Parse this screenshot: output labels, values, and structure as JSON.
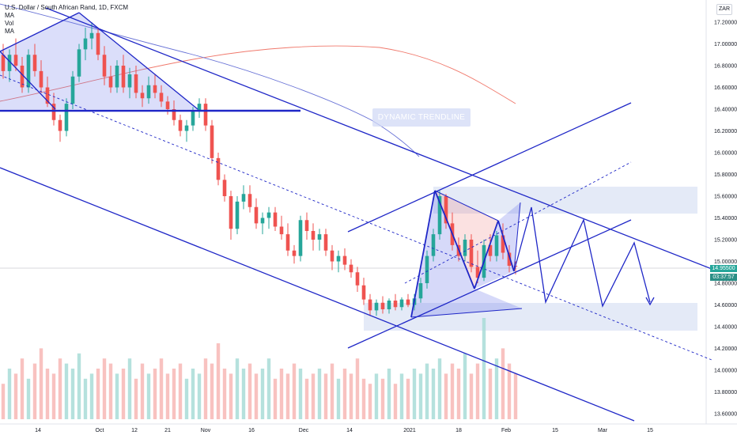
{
  "legend": {
    "symbol": "U.S. Dollar / South African Rand, 1D, FXCM",
    "ma1": "MA",
    "vol": "Vol",
    "ma2": "MA"
  },
  "currency_badge": "ZAR",
  "current_price": "14.95500",
  "countdown": "03:37:57",
  "annotation": "DYNAMIC TRENDLINE",
  "colors": {
    "up": "#26a69a",
    "down": "#ef5350",
    "drawing": "#1f27c7",
    "ma_blue": "#6872d6",
    "ma_red": "#f0796c",
    "zone": "#dbe3f4"
  },
  "chart_data": {
    "type": "candlestick",
    "title": "U.S. Dollar / South African Rand, 1D, FXCM",
    "y_axis_side": "right",
    "ylim": [
      13.55,
      17.3
    ],
    "y_ticks": [
      "17.20000",
      "17.00000",
      "16.80000",
      "16.60000",
      "16.40000",
      "16.20000",
      "16.00000",
      "15.80000",
      "15.60000",
      "15.40000",
      "15.20000",
      "15.00000",
      "14.80000",
      "14.60000",
      "14.40000",
      "14.20000",
      "14.00000",
      "13.80000",
      "13.60000"
    ],
    "x_ticks": [
      "14",
      "Oct",
      "12",
      "21",
      "Nov",
      "16",
      "Dec",
      "14",
      "2021",
      "18",
      "Feb",
      "15",
      "Mar",
      "15"
    ],
    "candles": [
      {
        "o": 16.9,
        "h": 17.0,
        "l": 16.68,
        "c": 16.75
      },
      {
        "o": 16.75,
        "h": 16.95,
        "l": 16.65,
        "c": 16.9
      },
      {
        "o": 16.9,
        "h": 17.05,
        "l": 16.75,
        "c": 16.8
      },
      {
        "o": 16.8,
        "h": 16.88,
        "l": 16.55,
        "c": 16.6
      },
      {
        "o": 16.6,
        "h": 16.95,
        "l": 16.55,
        "c": 16.9
      },
      {
        "o": 16.9,
        "h": 17.0,
        "l": 16.7,
        "c": 16.75
      },
      {
        "o": 16.75,
        "h": 16.85,
        "l": 16.55,
        "c": 16.6
      },
      {
        "o": 16.6,
        "h": 16.7,
        "l": 16.42,
        "c": 16.45
      },
      {
        "o": 16.45,
        "h": 16.55,
        "l": 16.25,
        "c": 16.3
      },
      {
        "o": 16.3,
        "h": 16.35,
        "l": 16.1,
        "c": 16.2
      },
      {
        "o": 16.2,
        "h": 16.5,
        "l": 16.15,
        "c": 16.45
      },
      {
        "o": 16.45,
        "h": 16.75,
        "l": 16.4,
        "c": 16.7
      },
      {
        "o": 16.7,
        "h": 17.0,
        "l": 16.65,
        "c": 16.95
      },
      {
        "o": 16.95,
        "h": 17.15,
        "l": 16.85,
        "c": 17.05
      },
      {
        "o": 17.05,
        "h": 17.2,
        "l": 16.95,
        "c": 17.1
      },
      {
        "o": 17.1,
        "h": 17.15,
        "l": 16.85,
        "c": 16.9
      },
      {
        "o": 16.9,
        "h": 16.98,
        "l": 16.62,
        "c": 16.7
      },
      {
        "o": 16.7,
        "h": 16.8,
        "l": 16.55,
        "c": 16.6
      },
      {
        "o": 16.6,
        "h": 16.85,
        "l": 16.55,
        "c": 16.8
      },
      {
        "o": 16.8,
        "h": 16.9,
        "l": 16.55,
        "c": 16.6
      },
      {
        "o": 16.6,
        "h": 16.78,
        "l": 16.5,
        "c": 16.72
      },
      {
        "o": 16.72,
        "h": 16.8,
        "l": 16.5,
        "c": 16.55
      },
      {
        "o": 16.55,
        "h": 16.62,
        "l": 16.42,
        "c": 16.5
      },
      {
        "o": 16.5,
        "h": 16.7,
        "l": 16.45,
        "c": 16.62
      },
      {
        "o": 16.62,
        "h": 16.72,
        "l": 16.5,
        "c": 16.55
      },
      {
        "o": 16.55,
        "h": 16.62,
        "l": 16.42,
        "c": 16.47
      },
      {
        "o": 16.47,
        "h": 16.52,
        "l": 16.35,
        "c": 16.4
      },
      {
        "o": 16.4,
        "h": 16.48,
        "l": 16.25,
        "c": 16.3
      },
      {
        "o": 16.3,
        "h": 16.35,
        "l": 16.15,
        "c": 16.2
      },
      {
        "o": 16.2,
        "h": 16.3,
        "l": 16.1,
        "c": 16.25
      },
      {
        "o": 16.25,
        "h": 16.42,
        "l": 16.2,
        "c": 16.38
      },
      {
        "o": 16.38,
        "h": 16.5,
        "l": 16.32,
        "c": 16.45
      },
      {
        "o": 16.45,
        "h": 16.5,
        "l": 16.2,
        "c": 16.25
      },
      {
        "o": 16.25,
        "h": 16.3,
        "l": 15.9,
        "c": 15.95
      },
      {
        "o": 15.95,
        "h": 16.0,
        "l": 15.7,
        "c": 15.75
      },
      {
        "o": 15.75,
        "h": 15.8,
        "l": 15.55,
        "c": 15.6
      },
      {
        "o": 15.6,
        "h": 15.65,
        "l": 15.2,
        "c": 15.3
      },
      {
        "o": 15.3,
        "h": 15.6,
        "l": 15.25,
        "c": 15.55
      },
      {
        "o": 15.55,
        "h": 15.7,
        "l": 15.48,
        "c": 15.62
      },
      {
        "o": 15.62,
        "h": 15.7,
        "l": 15.45,
        "c": 15.5
      },
      {
        "o": 15.5,
        "h": 15.58,
        "l": 15.3,
        "c": 15.35
      },
      {
        "o": 15.35,
        "h": 15.45,
        "l": 15.25,
        "c": 15.4
      },
      {
        "o": 15.4,
        "h": 15.5,
        "l": 15.3,
        "c": 15.45
      },
      {
        "o": 15.45,
        "h": 15.5,
        "l": 15.28,
        "c": 15.32
      },
      {
        "o": 15.32,
        "h": 15.42,
        "l": 15.2,
        "c": 15.25
      },
      {
        "o": 15.25,
        "h": 15.35,
        "l": 15.05,
        "c": 15.1
      },
      {
        "o": 15.1,
        "h": 15.15,
        "l": 14.98,
        "c": 15.05
      },
      {
        "o": 15.05,
        "h": 15.42,
        "l": 15.0,
        "c": 15.38
      },
      {
        "o": 15.38,
        "h": 15.45,
        "l": 15.2,
        "c": 15.28
      },
      {
        "o": 15.28,
        "h": 15.35,
        "l": 15.1,
        "c": 15.2
      },
      {
        "o": 15.2,
        "h": 15.3,
        "l": 15.1,
        "c": 15.25
      },
      {
        "o": 15.25,
        "h": 15.3,
        "l": 15.05,
        "c": 15.1
      },
      {
        "o": 15.1,
        "h": 15.15,
        "l": 14.92,
        "c": 15.0
      },
      {
        "o": 15.0,
        "h": 15.1,
        "l": 14.9,
        "c": 15.05
      },
      {
        "o": 15.05,
        "h": 15.12,
        "l": 14.92,
        "c": 14.97
      },
      {
        "o": 14.97,
        "h": 15.02,
        "l": 14.85,
        "c": 14.9
      },
      {
        "o": 14.9,
        "h": 14.95,
        "l": 14.72,
        "c": 14.78
      },
      {
        "o": 14.78,
        "h": 14.85,
        "l": 14.6,
        "c": 14.65
      },
      {
        "o": 14.65,
        "h": 14.7,
        "l": 14.5,
        "c": 14.55
      },
      {
        "o": 14.55,
        "h": 14.65,
        "l": 14.5,
        "c": 14.62
      },
      {
        "o": 14.62,
        "h": 14.68,
        "l": 14.52,
        "c": 14.56
      },
      {
        "o": 14.56,
        "h": 14.66,
        "l": 14.52,
        "c": 14.64
      },
      {
        "o": 14.64,
        "h": 14.7,
        "l": 14.55,
        "c": 14.58
      },
      {
        "o": 14.58,
        "h": 14.67,
        "l": 14.55,
        "c": 14.65
      },
      {
        "o": 14.65,
        "h": 14.7,
        "l": 14.58,
        "c": 14.6
      },
      {
        "o": 14.6,
        "h": 14.7,
        "l": 14.55,
        "c": 14.66
      },
      {
        "o": 14.66,
        "h": 14.85,
        "l": 14.62,
        "c": 14.8
      },
      {
        "o": 14.8,
        "h": 15.1,
        "l": 14.75,
        "c": 15.05
      },
      {
        "o": 15.05,
        "h": 15.3,
        "l": 15.0,
        "c": 15.25
      },
      {
        "o": 15.25,
        "h": 15.65,
        "l": 15.2,
        "c": 15.6
      },
      {
        "o": 15.6,
        "h": 15.62,
        "l": 15.3,
        "c": 15.35
      },
      {
        "o": 15.35,
        "h": 15.45,
        "l": 15.1,
        "c": 15.15
      },
      {
        "o": 15.15,
        "h": 15.22,
        "l": 15.0,
        "c": 15.05
      },
      {
        "o": 15.05,
        "h": 15.25,
        "l": 15.0,
        "c": 15.2
      },
      {
        "o": 15.2,
        "h": 15.25,
        "l": 14.9,
        "c": 14.95
      },
      {
        "o": 14.95,
        "h": 15.1,
        "l": 14.8,
        "c": 14.85
      },
      {
        "o": 14.85,
        "h": 15.2,
        "l": 14.82,
        "c": 15.15
      },
      {
        "o": 15.15,
        "h": 15.25,
        "l": 15.0,
        "c": 15.05
      },
      {
        "o": 15.05,
        "h": 15.28,
        "l": 15.0,
        "c": 15.24
      },
      {
        "o": 15.24,
        "h": 15.35,
        "l": 15.02,
        "c": 15.08
      },
      {
        "o": 15.08,
        "h": 15.15,
        "l": 14.9,
        "c": 14.96
      },
      {
        "o": 14.96,
        "h": 15.0,
        "l": 14.88,
        "c": 14.955
      }
    ],
    "volume_relative": [
      0.35,
      0.5,
      0.45,
      0.6,
      0.4,
      0.55,
      0.7,
      0.5,
      0.45,
      0.6,
      0.55,
      0.5,
      0.65,
      0.4,
      0.45,
      0.5,
      0.6,
      0.55,
      0.45,
      0.5,
      0.6,
      0.4,
      0.55,
      0.45,
      0.5,
      0.6,
      0.45,
      0.5,
      0.55,
      0.4,
      0.5,
      0.45,
      0.6,
      0.55,
      0.75,
      0.5,
      0.45,
      0.6,
      0.5,
      0.55,
      0.45,
      0.5,
      0.6,
      0.4,
      0.5,
      0.45,
      0.55,
      0.5,
      0.4,
      0.45,
      0.5,
      0.45,
      0.55,
      0.4,
      0.5,
      0.45,
      0.6,
      0.4,
      0.35,
      0.45,
      0.4,
      0.5,
      0.35,
      0.45,
      0.4,
      0.5,
      0.45,
      0.55,
      0.5,
      0.6,
      0.45,
      0.55,
      0.5,
      0.65,
      0.45,
      0.55,
      1.0,
      0.5,
      0.6,
      0.7,
      0.55,
      0.45
    ]
  }
}
